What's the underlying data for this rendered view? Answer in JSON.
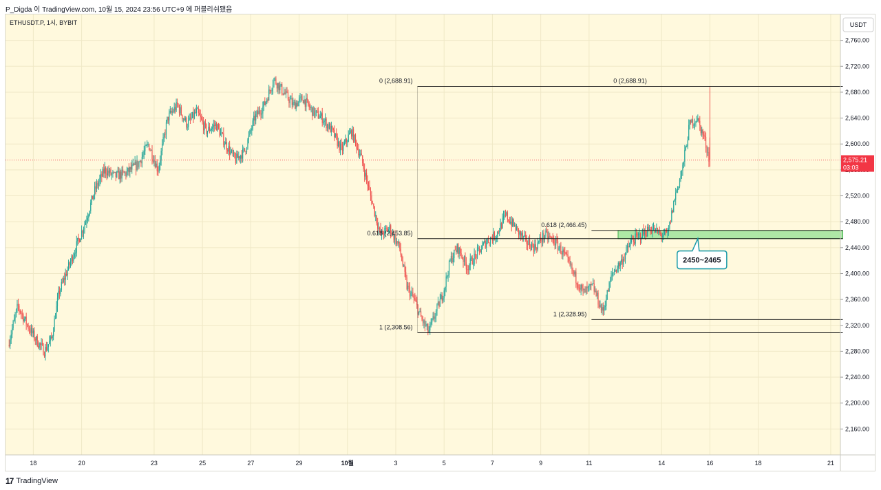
{
  "header": {
    "publish_info": "P_Digda 이 TradingView.com, 10월 15, 2024 23:56 UTC+9 에 퍼블리쉬됐음"
  },
  "footer": {
    "brand": "TradingView",
    "logo_glyph": "17"
  },
  "chart_data": {
    "type": "candlestick",
    "symbol_label": "ETHUSDT.P, 1시, BYBIT",
    "currency": "USDT",
    "ylim": [
      2120,
      2800
    ],
    "y_ticks": [
      "2,760.00",
      "2,720.00",
      "2,680.00",
      "2,640.00",
      "2,600.00",
      "2,560.00",
      "2,520.00",
      "2,480.00",
      "2,440.00",
      "2,400.00",
      "2,360.00",
      "2,320.00",
      "2,280.00",
      "2,240.00",
      "2,200.00",
      "2,160.00"
    ],
    "y_tick_values": [
      2760,
      2720,
      2680,
      2640,
      2600,
      2560,
      2520,
      2480,
      2440,
      2400,
      2360,
      2320,
      2280,
      2240,
      2200,
      2160
    ],
    "x_ticks": [
      {
        "label": "18",
        "day": 18,
        "bold": false
      },
      {
        "label": "20",
        "day": 20,
        "bold": false
      },
      {
        "label": "23",
        "day": 23,
        "bold": false
      },
      {
        "label": "25",
        "day": 25,
        "bold": false
      },
      {
        "label": "27",
        "day": 27,
        "bold": false
      },
      {
        "label": "29",
        "day": 29,
        "bold": false
      },
      {
        "label": "10월",
        "day": 31,
        "bold": true
      },
      {
        "label": "3",
        "day": 33,
        "bold": false
      },
      {
        "label": "5",
        "day": 35,
        "bold": false
      },
      {
        "label": "7",
        "day": 37,
        "bold": false
      },
      {
        "label": "9",
        "day": 39,
        "bold": false
      },
      {
        "label": "11",
        "day": 41,
        "bold": false
      },
      {
        "label": "14",
        "day": 44,
        "bold": false
      },
      {
        "label": "16",
        "day": 46,
        "bold": false
      },
      {
        "label": "18",
        "day": 48,
        "bold": false
      },
      {
        "label": "21",
        "day": 51,
        "bold": false
      }
    ],
    "price_path": [
      [
        17.0,
        2290
      ],
      [
        17.4,
        2350
      ],
      [
        17.8,
        2320
      ],
      [
        18.2,
        2295
      ],
      [
        18.5,
        2280
      ],
      [
        18.8,
        2300
      ],
      [
        19.1,
        2370
      ],
      [
        19.4,
        2400
      ],
      [
        19.8,
        2440
      ],
      [
        20.2,
        2480
      ],
      [
        20.6,
        2530
      ],
      [
        21.0,
        2560
      ],
      [
        21.4,
        2550
      ],
      [
        21.9,
        2555
      ],
      [
        22.4,
        2570
      ],
      [
        22.8,
        2600
      ],
      [
        23.2,
        2560
      ],
      [
        23.6,
        2640
      ],
      [
        24.0,
        2660
      ],
      [
        24.4,
        2630
      ],
      [
        24.8,
        2650
      ],
      [
        25.2,
        2620
      ],
      [
        25.6,
        2630
      ],
      [
        26.0,
        2600
      ],
      [
        26.4,
        2575
      ],
      [
        26.8,
        2590
      ],
      [
        27.2,
        2640
      ],
      [
        27.6,
        2660
      ],
      [
        28.0,
        2700
      ],
      [
        28.4,
        2680
      ],
      [
        28.8,
        2660
      ],
      [
        29.2,
        2670
      ],
      [
        29.6,
        2650
      ],
      [
        30.0,
        2640
      ],
      [
        30.4,
        2620
      ],
      [
        30.8,
        2590
      ],
      [
        31.2,
        2620
      ],
      [
        31.6,
        2580
      ],
      [
        32.0,
        2520
      ],
      [
        32.4,
        2460
      ],
      [
        32.8,
        2470
      ],
      [
        33.2,
        2440
      ],
      [
        33.5,
        2380
      ],
      [
        33.8,
        2360
      ],
      [
        34.1,
        2330
      ],
      [
        34.4,
        2310
      ],
      [
        34.7,
        2340
      ],
      [
        35.0,
        2370
      ],
      [
        35.3,
        2420
      ],
      [
        35.6,
        2440
      ],
      [
        36.0,
        2410
      ],
      [
        36.4,
        2430
      ],
      [
        36.8,
        2450
      ],
      [
        37.2,
        2460
      ],
      [
        37.6,
        2490
      ],
      [
        38.0,
        2470
      ],
      [
        38.4,
        2450
      ],
      [
        38.8,
        2440
      ],
      [
        39.2,
        2460
      ],
      [
        39.6,
        2450
      ],
      [
        40.0,
        2430
      ],
      [
        40.4,
        2400
      ],
      [
        40.8,
        2370
      ],
      [
        41.2,
        2380
      ],
      [
        41.6,
        2340
      ],
      [
        42.0,
        2400
      ],
      [
        42.4,
        2420
      ],
      [
        42.8,
        2450
      ],
      [
        43.2,
        2460
      ],
      [
        43.6,
        2470
      ],
      [
        44.0,
        2460
      ],
      [
        44.3,
        2460
      ],
      [
        44.6,
        2520
      ],
      [
        44.9,
        2560
      ],
      [
        45.2,
        2630
      ],
      [
        45.5,
        2640
      ],
      [
        45.8,
        2610
      ],
      [
        46.0,
        2580
      ]
    ],
    "last_candle": {
      "day": 46.0,
      "open": 2610,
      "high": 2688,
      "low": 2565,
      "close": 2575
    },
    "last_price": {
      "label": "2,575.21",
      "countdown": "03:03",
      "value": 2575.21,
      "color": "#f23645"
    },
    "fib_levels": [
      {
        "label": "0 (2,688.91)",
        "value": 2688.91,
        "x_start": 33.9,
        "x_end": 51.5,
        "label_position": "left"
      },
      {
        "label": "0 (2,688.91)",
        "value": 2688.91,
        "x_start": 33.9,
        "x_end": 51.5,
        "label_position": "center"
      },
      {
        "label": "0.618 (2,453.85)",
        "value": 2453.85,
        "x_start": 33.9,
        "x_end": 51.5,
        "label_position": "left"
      },
      {
        "label": "1 (2,308.56)",
        "value": 2308.56,
        "x_start": 33.9,
        "x_end": 51.5,
        "label_position": "left"
      },
      {
        "label": "0.618 (2,466.45)",
        "value": 2466.45,
        "x_start": 41.1,
        "x_end": 51.5,
        "label_position": "left"
      },
      {
        "label": "1 (2,328.95)",
        "value": 2328.95,
        "x_start": 41.1,
        "x_end": 51.5,
        "label_position": "left"
      }
    ],
    "zone": {
      "from": 2453.85,
      "to": 2466.45,
      "x_start": 42.2,
      "x_end": 51.5,
      "color": "#a5e6a0",
      "border": "#3fae49"
    },
    "callout": {
      "label": "2450~2465",
      "anchor_day": 45.5,
      "anchor_price": 2454,
      "border": "#1a9aa9"
    },
    "colors": {
      "up": "#26a69a",
      "down": "#ef5350",
      "bg": "#fff9dd",
      "grid": "#efe8c6",
      "text": "#131722"
    }
  }
}
